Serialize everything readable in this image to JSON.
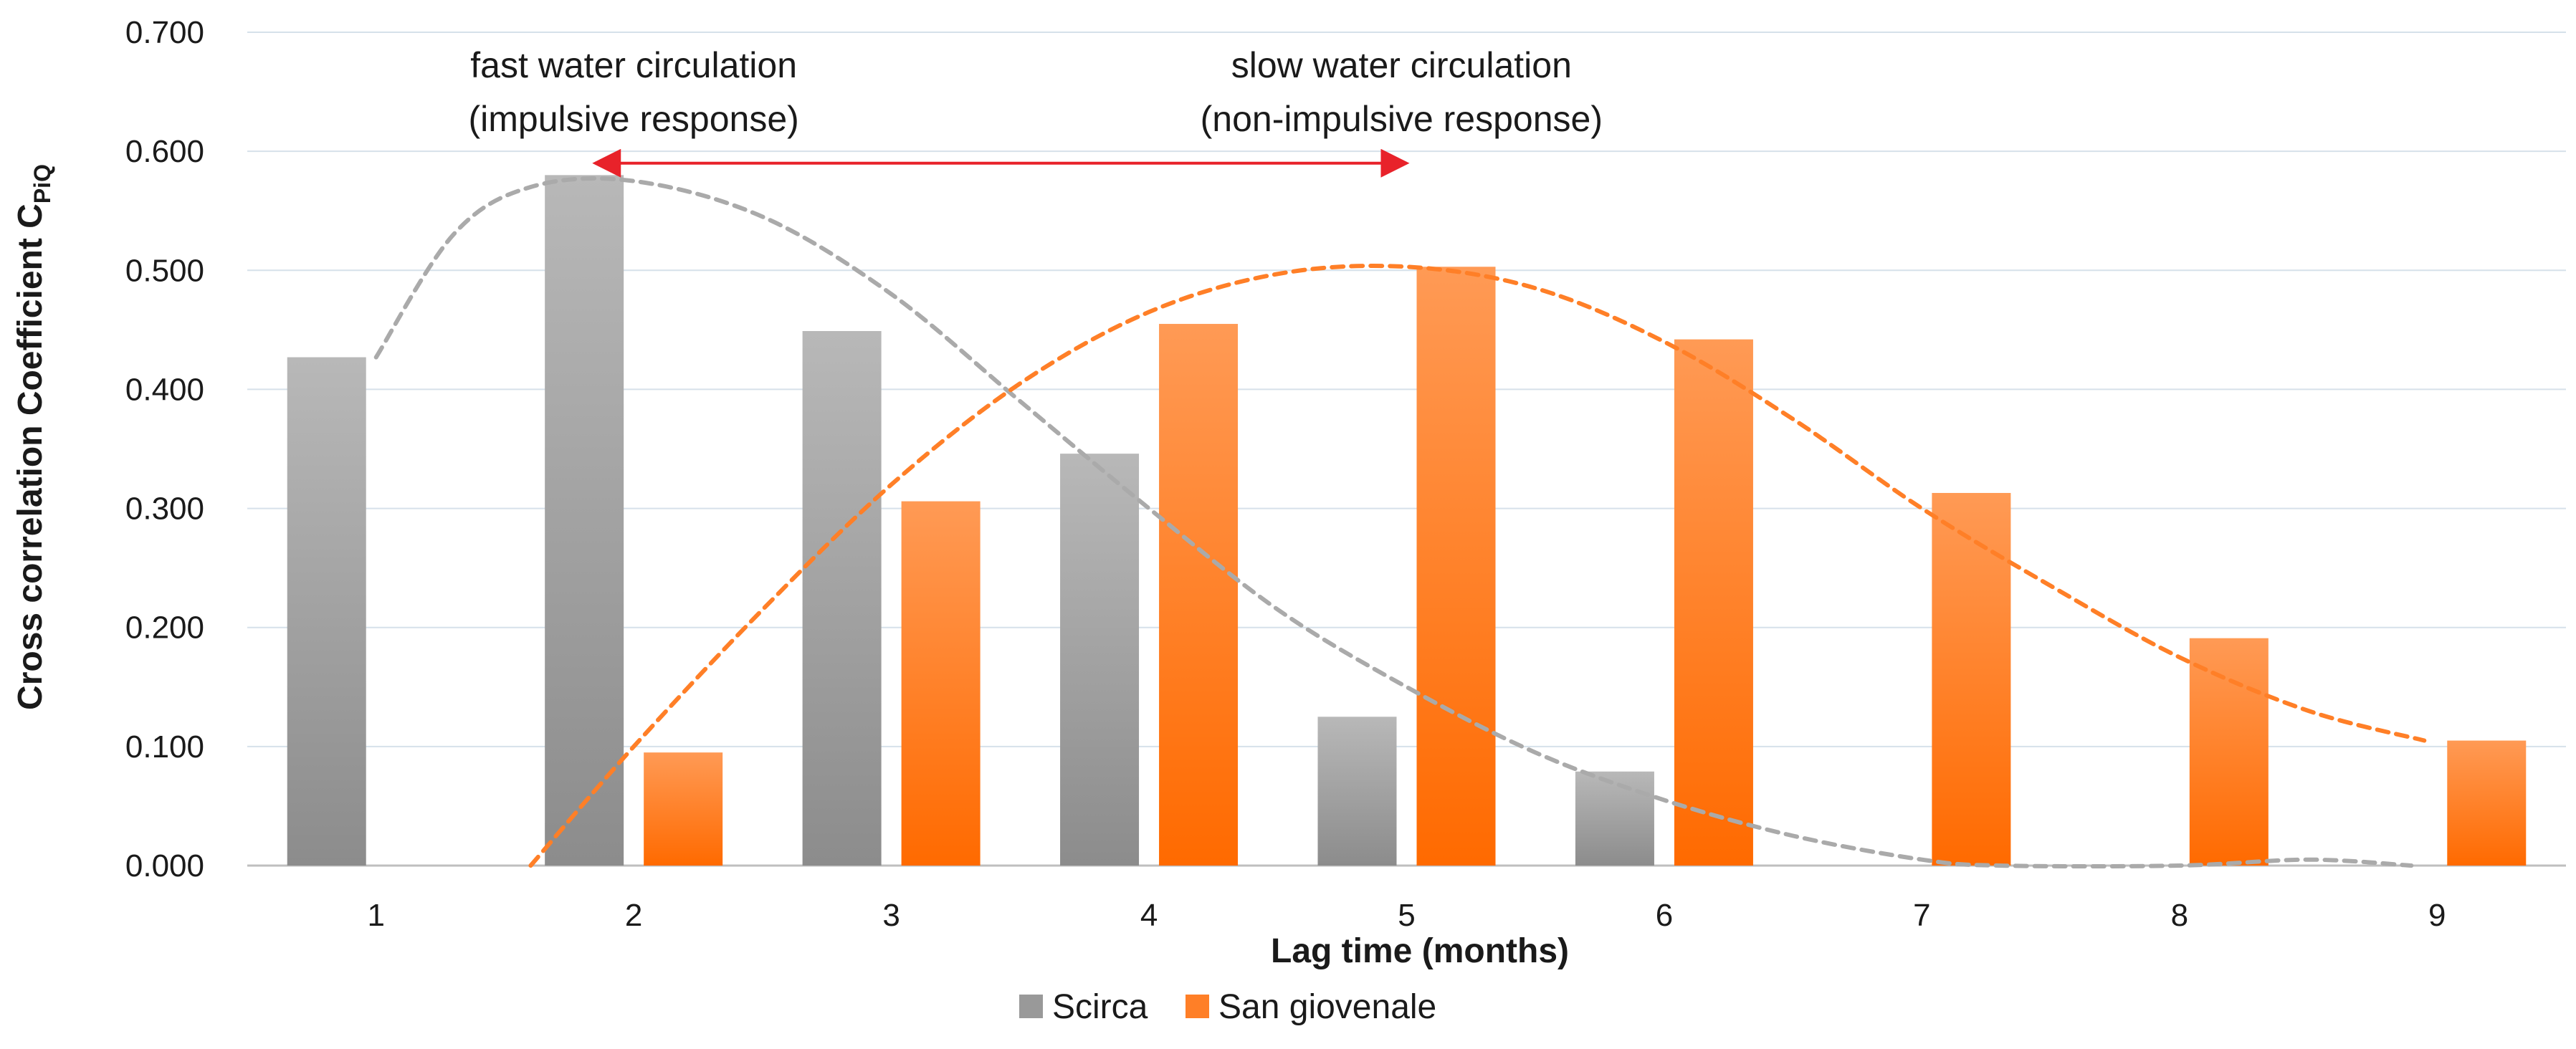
{
  "chart_data": {
    "type": "bar",
    "title": "",
    "xlabel": "Lag time (months)",
    "ylabel_main": "Cross correlation Coefficient C",
    "ylabel_sub": "PiQ",
    "ylim": [
      0,
      0.7
    ],
    "yticks": [
      "0.000",
      "0.100",
      "0.200",
      "0.300",
      "0.400",
      "0.500",
      "0.600",
      "0.700"
    ],
    "ytick_values": [
      0,
      0.1,
      0.2,
      0.3,
      0.4,
      0.5,
      0.6,
      0.7
    ],
    "categories": [
      "1",
      "2",
      "3",
      "4",
      "5",
      "6",
      "7",
      "8",
      "9"
    ],
    "series": [
      {
        "name": "Scirca",
        "color": "#999999",
        "color_light": "#b3b3b3",
        "color_dark": "#8c8c8c",
        "values": [
          0.427,
          0.58,
          0.449,
          0.346,
          0.125,
          0.079,
          null,
          null,
          null
        ]
      },
      {
        "name": "San giovenale",
        "color": "#ff7f27",
        "color_light": "#ff9a55",
        "color_dark": "#ff6a00",
        "values": [
          null,
          0.095,
          0.306,
          0.455,
          0.503,
          0.442,
          0.313,
          0.191,
          0.105
        ]
      }
    ],
    "trendlines": [
      {
        "series": "Scirca",
        "color": "#aaaaaa",
        "style": "dashed",
        "points": [
          [
            1.0,
            0.427
          ],
          [
            1.3,
            0.53
          ],
          [
            1.6,
            0.57
          ],
          [
            2.0,
            0.575
          ],
          [
            2.5,
            0.545
          ],
          [
            3.0,
            0.48
          ],
          [
            3.5,
            0.39
          ],
          [
            4.0,
            0.3
          ],
          [
            4.5,
            0.215
          ],
          [
            5.0,
            0.15
          ],
          [
            5.5,
            0.095
          ],
          [
            6.0,
            0.055
          ],
          [
            6.5,
            0.025
          ],
          [
            7.0,
            0.005
          ],
          [
            7.3,
            0.0
          ],
          [
            8.0,
            0.0
          ],
          [
            8.5,
            0.005
          ],
          [
            8.9,
            0.0
          ]
        ]
      },
      {
        "series": "San giovenale",
        "color": "#ff7f27",
        "style": "dashed",
        "points": [
          [
            1.6,
            0.0
          ],
          [
            2.0,
            0.1
          ],
          [
            2.5,
            0.215
          ],
          [
            3.0,
            0.32
          ],
          [
            3.5,
            0.405
          ],
          [
            4.0,
            0.465
          ],
          [
            4.5,
            0.497
          ],
          [
            5.0,
            0.503
          ],
          [
            5.5,
            0.485
          ],
          [
            6.0,
            0.44
          ],
          [
            6.5,
            0.375
          ],
          [
            7.0,
            0.3
          ],
          [
            7.5,
            0.235
          ],
          [
            8.0,
            0.175
          ],
          [
            8.5,
            0.13
          ],
          [
            8.95,
            0.105
          ]
        ]
      }
    ],
    "annotations": [
      {
        "name": "fast-circulation",
        "line1": "fast water circulation",
        "line2": "(impulsive response)",
        "x": 2.0
      },
      {
        "name": "slow-circulation",
        "line1": "slow water circulation",
        "line2": "(non-impulsive response)",
        "x": 4.98
      }
    ],
    "arrow": {
      "x_start": 1.85,
      "x_end": 5.0,
      "y": 0.59,
      "color": "#e8222a"
    },
    "legend": {
      "position": "bottom-center"
    }
  }
}
